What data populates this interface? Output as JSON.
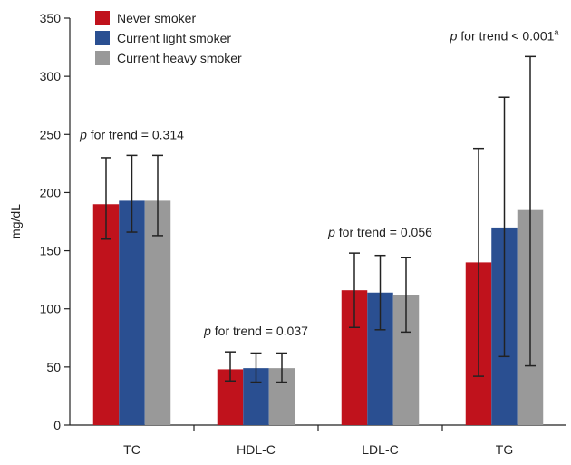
{
  "chart_data": {
    "type": "bar",
    "title": "",
    "xlabel": "",
    "ylabel": "mg/dL",
    "ylim": [
      0,
      350
    ],
    "yticks": [
      0,
      50,
      100,
      150,
      200,
      250,
      300,
      350
    ],
    "categories": [
      "TC",
      "HDL-C",
      "LDL-C",
      "TG"
    ],
    "series": [
      {
        "name": "Never smoker",
        "color": "#c0121c",
        "values": [
          190,
          48,
          116,
          140
        ],
        "error_low": [
          160,
          38,
          84,
          42
        ],
        "error_high": [
          230,
          63,
          148,
          238
        ]
      },
      {
        "name": "Current light smoker",
        "color": "#2a4f91",
        "values": [
          193,
          49,
          114,
          170
        ],
        "error_low": [
          166,
          37,
          82,
          59
        ],
        "error_high": [
          232,
          62,
          146,
          282
        ]
      },
      {
        "name": "Current heavy smoker",
        "color": "#999999",
        "values": [
          193,
          49,
          112,
          185
        ],
        "error_low": [
          163,
          37,
          80,
          51
        ],
        "error_high": [
          232,
          62,
          144,
          317
        ]
      }
    ],
    "legend_position": "top-left",
    "grid": false,
    "annotations": [
      {
        "category": "TC",
        "p": "p",
        "text": " for trend = 0.314",
        "sup": ""
      },
      {
        "category": "HDL-C",
        "p": "p",
        "text": " for trend = 0.037",
        "sup": ""
      },
      {
        "category": "LDL-C",
        "p": "p",
        "text": " for trend = 0.056",
        "sup": ""
      },
      {
        "category": "TG",
        "p": "p",
        "text": " for trend < 0.001",
        "sup": "a"
      }
    ]
  }
}
